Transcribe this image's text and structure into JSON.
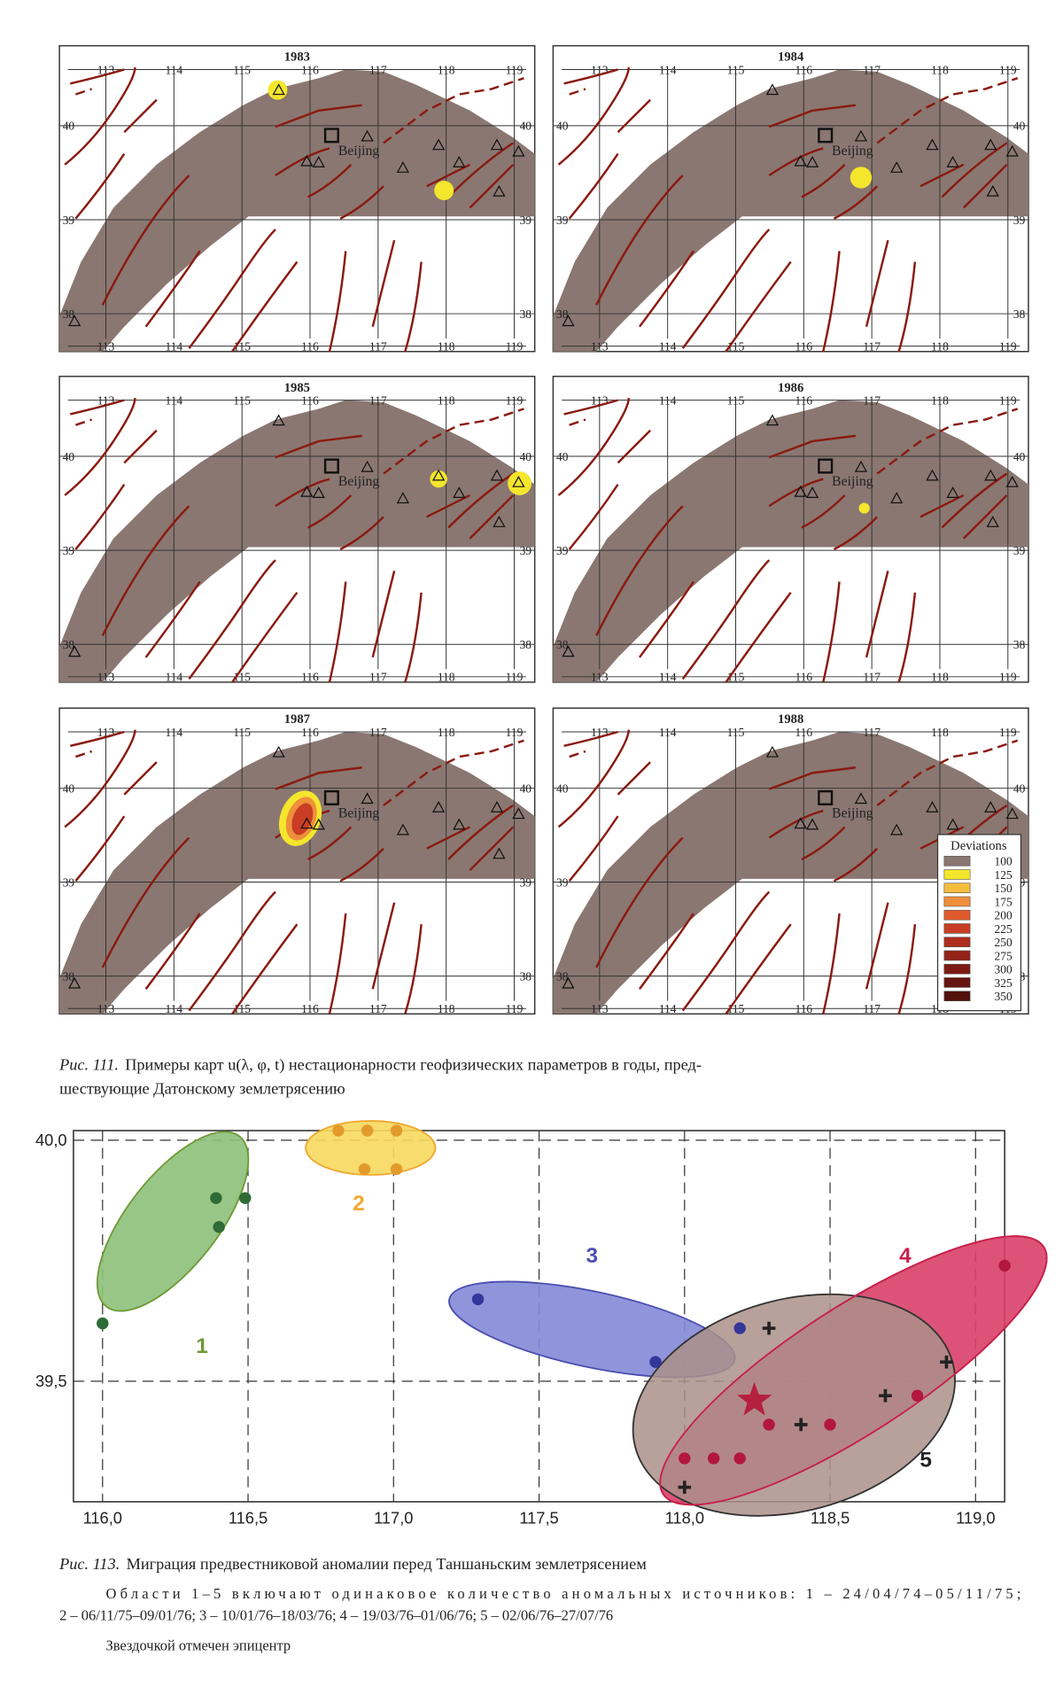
{
  "maps": {
    "lon_ticks": [
      113,
      114,
      115,
      116,
      117,
      118,
      119
    ],
    "lat_ticks": [
      40,
      39,
      38
    ],
    "place": "Beijing",
    "panels": [
      {
        "year": "1983"
      },
      {
        "year": "1984"
      },
      {
        "year": "1985"
      },
      {
        "year": "1986"
      },
      {
        "year": "1987"
      },
      {
        "year": "1988"
      }
    ],
    "legend": {
      "title": "Deviations",
      "values": [
        100,
        125,
        150,
        175,
        200,
        225,
        250,
        275,
        300,
        325,
        350
      ],
      "colors": [
        "#8a7771",
        "#f4e62c",
        "#f5bd3e",
        "#ee8f3b",
        "#e05a2b",
        "#c83d23",
        "#ae2d1c",
        "#942318",
        "#7c1b14",
        "#661510",
        "#52100c"
      ]
    }
  },
  "figure_111": {
    "caption_label": "Рис. 111.",
    "caption_lines": [
      "Примеры карт u(λ, φ, t)  нестационарности геофизических параметров в годы, пред-",
      "шествующие Датонскому землетрясению"
    ]
  },
  "chart_data": {
    "type": "scatter",
    "xlim": [
      115.9,
      119.1
    ],
    "ylim": [
      39.25,
      40.02
    ],
    "xticks": [
      {
        "value": 116,
        "label": "116,0"
      },
      {
        "value": 116.5,
        "label": "116,5"
      },
      {
        "value": 117,
        "label": "117,0"
      },
      {
        "value": 117.5,
        "label": "117,5"
      },
      {
        "value": 118,
        "label": "118,0"
      },
      {
        "value": 118.5,
        "label": "118,5"
      },
      {
        "value": 119,
        "label": "119,0"
      }
    ],
    "yticks": [
      {
        "value": 39.5,
        "label": "39,5"
      },
      {
        "value": 40,
        "label": "40,0"
      }
    ],
    "grid": true,
    "series": [
      {
        "name": "1",
        "color": "#6e9a35",
        "marker": "circle",
        "x": [
          116.0,
          116.39,
          116.49,
          116.4
        ],
        "y": [
          39.62,
          39.88,
          39.88,
          39.82
        ]
      },
      {
        "name": "2",
        "color": "#f0a830",
        "marker": "circle",
        "x": [
          116.81,
          116.91,
          117.01,
          116.9,
          117.01
        ],
        "y": [
          40.02,
          40.02,
          40.02,
          39.94,
          39.94
        ]
      },
      {
        "name": "3",
        "color": "#4a4fb0",
        "marker": "circle",
        "x": [
          117.29,
          117.9,
          118.19
        ],
        "y": [
          39.67,
          39.54,
          39.61
        ]
      },
      {
        "name": "4",
        "color": "#c8204a",
        "marker": "circle",
        "x": [
          119.1,
          118.8,
          118.5,
          118.29,
          118.0,
          118.1,
          118.19
        ],
        "y": [
          39.74,
          39.47,
          39.41,
          39.41,
          39.34,
          39.34,
          39.34
        ]
      },
      {
        "name": "5",
        "color": "#222222",
        "marker": "plus",
        "x": [
          118.29,
          118.9,
          118.69,
          118.4,
          118.0
        ],
        "y": [
          39.61,
          39.54,
          39.47,
          39.41,
          39.28
        ]
      }
    ],
    "epicenter": {
      "x": 118.24,
      "y": 39.46,
      "color": "#b5203f"
    }
  },
  "figure_113": {
    "caption_label": "Рис. 113.",
    "caption": "Миграция предвестниковой аномалии перед Таншаньским землетрясением",
    "note_lines": [
      "Области 1–5 включают одинаковое количество аномальных источников: 1 – 24/04/74–05/11/75;",
      "2 – 06/11/75–09/01/76; 3 – 10/01/76–18/03/76; 4 – 19/03/76–01/06/76; 5 – 02/06/76–27/07/76",
      "Звездочкой отмечен эпицентр"
    ]
  }
}
